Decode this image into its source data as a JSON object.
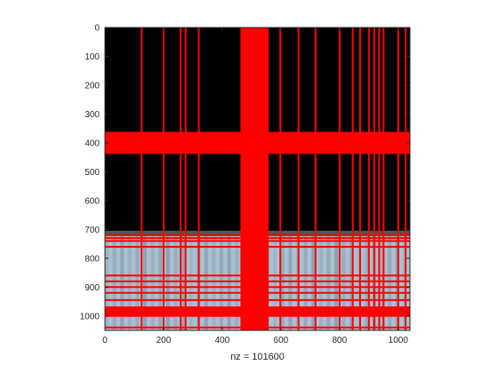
{
  "chart_data": {
    "type": "heatmap",
    "xlabel": "nz = 101600",
    "ylabel": "",
    "title": "",
    "xlim": [
      0,
      1040
    ],
    "ylim": [
      0,
      1050
    ],
    "y_reversed": true,
    "x_ticks": [
      0,
      200,
      400,
      600,
      800,
      1000
    ],
    "y_ticks": [
      0,
      100,
      200,
      300,
      400,
      500,
      600,
      700,
      800,
      900,
      1000
    ],
    "background_image": {
      "description_colors": {
        "dark": "#000000",
        "light": "#a9c0d0",
        "blue": "#5e88a8"
      },
      "dark_region_y": [
        0,
        705
      ],
      "light_region_y": [
        705,
        1050
      ]
    },
    "marker_color": "#ff0000",
    "vertical_lines_x": [
      125,
      200,
      258,
      275,
      320,
      465,
      470,
      475,
      480,
      485,
      490,
      495,
      500,
      505,
      510,
      515,
      520,
      525,
      530,
      535,
      540,
      545,
      550,
      555,
      598,
      660,
      718,
      800,
      845,
      870,
      900,
      918,
      935,
      950,
      1000,
      1025
    ],
    "horizontal_lines_y": [
      365,
      370,
      375,
      380,
      385,
      390,
      395,
      400,
      405,
      410,
      415,
      420,
      425,
      430,
      435,
      720,
      730,
      740,
      760,
      860,
      880,
      900,
      920,
      945,
      970,
      975,
      980,
      985,
      990,
      995,
      1000,
      1040
    ]
  }
}
